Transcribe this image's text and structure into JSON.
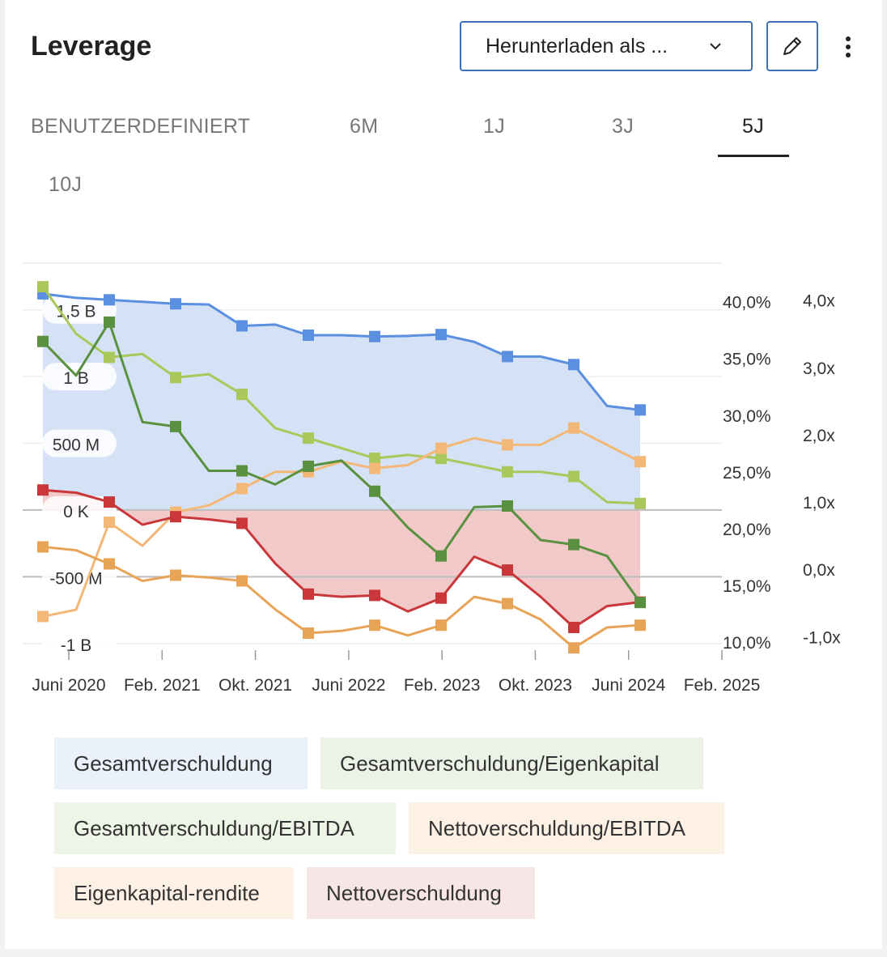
{
  "header": {
    "title": "Leverage",
    "download_label": "Herunterladen als ..."
  },
  "tabs": [
    {
      "label": "BENUTZERDEFINIERT",
      "active": false
    },
    {
      "label": "6M",
      "active": false
    },
    {
      "label": "1J",
      "active": false
    },
    {
      "label": "3J",
      "active": false
    },
    {
      "label": "5J",
      "active": true
    },
    {
      "label": "10J",
      "active": false
    }
  ],
  "icons": {
    "download_chevron": "chevron-down-icon",
    "edit": "pencil-icon",
    "more": "more-vertical-icon"
  },
  "chart_data": {
    "type": "line",
    "x_ticks": [
      "Juni 2020",
      "Feb. 2021",
      "Okt. 2021",
      "Juni 2022",
      "Feb. 2023",
      "Okt. 2023",
      "Juni 2024",
      "Feb. 2025"
    ],
    "x": [
      "2020-03",
      "2020-06",
      "2020-09",
      "2020-12",
      "2021-03",
      "2021-06",
      "2021-09",
      "2021-12",
      "2022-03",
      "2022-06",
      "2022-09",
      "2022-12",
      "2023-03",
      "2023-06",
      "2023-09",
      "2023-12",
      "2024-03",
      "2024-06",
      "2024-09",
      "2024-12"
    ],
    "axes": {
      "left": {
        "ticks": [
          "1,5 B",
          "1 B",
          "500 M",
          "0 K",
          "-500 M",
          "-1 B"
        ],
        "tick_values": [
          1500,
          1000,
          500,
          0,
          -500,
          -1000
        ],
        "range": [
          -1050,
          1850
        ],
        "unit": "M"
      },
      "right_pct": {
        "ticks": [
          "40,0%",
          "35,0%",
          "30,0%",
          "25,0%",
          "20,0%",
          "15,0%",
          "10,0%"
        ],
        "tick_values": [
          40,
          35,
          30,
          25,
          20,
          15,
          10
        ],
        "range": [
          9.3,
          43.4
        ]
      },
      "right_x": {
        "ticks": [
          "4,0x",
          "3,0x",
          "2,0x",
          "1,0x",
          "0,0x",
          "-1,0x"
        ],
        "tick_values": [
          4,
          3,
          2,
          1,
          0,
          -1
        ],
        "range": [
          -1.2,
          4.55
        ]
      }
    },
    "grid": true,
    "legend_position": "bottom",
    "series": [
      {
        "name": "Gesamtverschuldung",
        "axis": "left",
        "color": "#5b8fdf",
        "fill": "#d5e2f6",
        "legend_bg": "#eaf1fb",
        "values": [
          1620,
          1590,
          1575,
          1560,
          1545,
          1540,
          1380,
          1390,
          1310,
          1310,
          1300,
          1305,
          1315,
          1260,
          1150,
          1150,
          1090,
          780,
          750,
          null
        ],
        "markers": [
          1,
          0,
          1,
          0,
          1,
          0,
          1,
          0,
          1,
          0,
          1,
          0,
          1,
          0,
          1,
          0,
          1,
          0,
          1,
          0
        ]
      },
      {
        "name": "Gesamtverschuldung/Eigenkapital",
        "axis": "right_pct",
        "color": "#5a9140",
        "legend_bg": "#ecf3e6",
        "values": [
          36.5,
          33.5,
          38.2,
          29.4,
          29.0,
          25.1,
          25.1,
          23.9,
          25.5,
          26.0,
          23.3,
          20.1,
          17.6,
          21.9,
          22.0,
          19.0,
          18.6,
          17.6,
          13.5,
          null
        ],
        "markers": [
          1,
          0,
          1,
          0,
          1,
          0,
          1,
          0,
          1,
          0,
          1,
          0,
          1,
          0,
          1,
          0,
          1,
          0,
          1,
          0
        ]
      },
      {
        "name": "Gesamtverschuldung/EBITDA",
        "axis": "right_x",
        "color": "#a9c75a",
        "legend_bg": "#eef4e6",
        "values": [
          4.2,
          3.5,
          3.15,
          3.2,
          2.85,
          2.9,
          2.6,
          2.1,
          1.95,
          1.8,
          1.65,
          1.7,
          1.65,
          1.55,
          1.45,
          1.45,
          1.38,
          1.0,
          0.98,
          null
        ],
        "markers": [
          1,
          0,
          1,
          0,
          1,
          0,
          1,
          0,
          1,
          0,
          1,
          0,
          1,
          0,
          1,
          0,
          1,
          0,
          1,
          0
        ]
      },
      {
        "name": "Nettoverschuldung/EBITDA",
        "axis": "right_x",
        "color": "#f3b877",
        "legend_bg": "#fdf1e6",
        "values": [
          -0.7,
          -0.6,
          0.7,
          0.35,
          0.85,
          0.95,
          1.2,
          1.45,
          1.45,
          1.6,
          1.5,
          1.55,
          1.8,
          1.95,
          1.85,
          1.85,
          2.1,
          1.85,
          1.6,
          null
        ],
        "markers": [
          1,
          0,
          1,
          0,
          1,
          0,
          1,
          0,
          1,
          0,
          1,
          0,
          1,
          0,
          1,
          0,
          1,
          0,
          1,
          0
        ]
      },
      {
        "name": "Eigenkapital-rendite",
        "axis": "right_pct",
        "color": "#e8a456",
        "legend_bg": "#fdf1e6",
        "values": [
          18.4,
          18.1,
          16.9,
          15.4,
          15.9,
          15.7,
          15.4,
          12.9,
          10.8,
          11.0,
          11.5,
          10.6,
          11.5,
          14.0,
          13.4,
          12.0,
          9.5,
          11.3,
          11.5,
          null
        ],
        "markers": [
          1,
          0,
          1,
          0,
          1,
          0,
          1,
          0,
          1,
          0,
          1,
          0,
          1,
          0,
          1,
          0,
          1,
          0,
          1,
          0
        ]
      },
      {
        "name": "Nettoverschuldung",
        "axis": "left",
        "color": "#c9373a",
        "fill": "#f1c9c9",
        "legend_bg": "#f8e6e6",
        "values": [
          150,
          130,
          60,
          -110,
          -50,
          -70,
          -100,
          -400,
          -630,
          -650,
          -640,
          -760,
          -660,
          -350,
          -450,
          -650,
          -880,
          -720,
          -690,
          null
        ],
        "markers": [
          1,
          0,
          1,
          0,
          1,
          0,
          1,
          0,
          1,
          0,
          1,
          0,
          1,
          0,
          1,
          0,
          1,
          0,
          1,
          0
        ]
      }
    ]
  }
}
